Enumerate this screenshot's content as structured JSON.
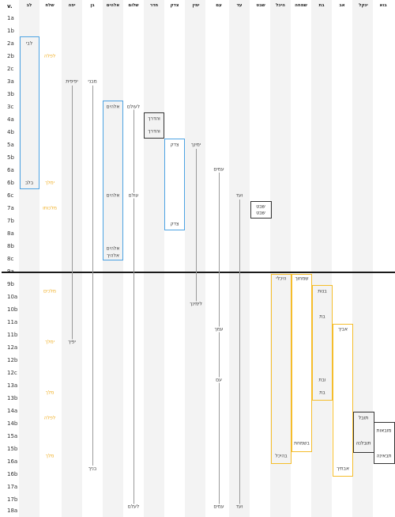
{
  "verse_header": "v.",
  "verses": [
    "1a",
    "1b",
    "2a",
    "2b",
    "2c",
    "3a",
    "3b",
    "3c",
    "4a",
    "4b",
    "5a",
    "5b",
    "6a",
    "6b",
    "6c",
    "7a",
    "7b",
    "8a",
    "8b",
    "8c",
    "9a",
    "9b",
    "10a",
    "10b",
    "11a",
    "11b",
    "12a",
    "12b",
    "12c",
    "13a",
    "13b",
    "14a",
    "14b",
    "15a",
    "15b",
    "16a",
    "16b",
    "17a",
    "17b",
    "18a",
    "18b"
  ],
  "columns": [
    "לב",
    "שלח",
    "יפה",
    "בן",
    "אלהים",
    "שלום",
    "חדר",
    "צדק",
    "ימין",
    "עם",
    "עד",
    "שבט",
    "היכל",
    "שמחה",
    "בת",
    "אב",
    "ינקל",
    "בוא"
  ],
  "words": {
    "lev_top": "לבי",
    "lev_6c": "בלב",
    "shalach_2b": "לפלה",
    "shalach_6c": "ימלך",
    "shalach_7b": "מלכותו",
    "shalach_10a": "מלכים",
    "shalach_12a": "ימלך",
    "shalach_14a": "מלך",
    "shalach_15a": "לפלה",
    "shalach_16b": "מלך",
    "yafe_3a": "יפיפית",
    "yafe_12a": "יפיך",
    "ben_3a": "מבני",
    "ben_17a": "בניך",
    "elohim_3c": "אלהים",
    "elohim_7a": "אלהים",
    "elohim_8c1": "אלהים",
    "elohim_8c2": "אלהיך",
    "shalom_3c": "לעולם",
    "shalom_7a": "עולם",
    "shalom_18b": "לעלם",
    "cheder_4a": "והדרך",
    "cheder_4b": "והדרך",
    "tzedek_5a": "צדק",
    "tzedek_8a": "צדק",
    "yamin_5a": "ימינך",
    "yamin_10b": "לימינך",
    "am_6a": "עמים",
    "am_11b": "עמך",
    "am_13a": "עם",
    "am_18b": "עמים",
    "ad_7a": "ועד",
    "ad_18b": "ועד",
    "shevet_7b1": "שבט",
    "shevet_7b2": "שבט",
    "heichal_9b": "היכלי",
    "heichal_16b": "בהיכל",
    "simcha_9b": "שמחוך",
    "simcha_16a": "בשמחת",
    "bat_10a": "בנות",
    "bat_11a": "בת",
    "bat_13a": "ובת",
    "bat_14a": "בת",
    "av_11b": "אביך",
    "av_17a": "אבתיך",
    "yinkal_15a": "תובל",
    "yinkal_16a": "תובלנה",
    "bo_15b": "מובאות",
    "bo_16b": "תבאינה"
  }
}
